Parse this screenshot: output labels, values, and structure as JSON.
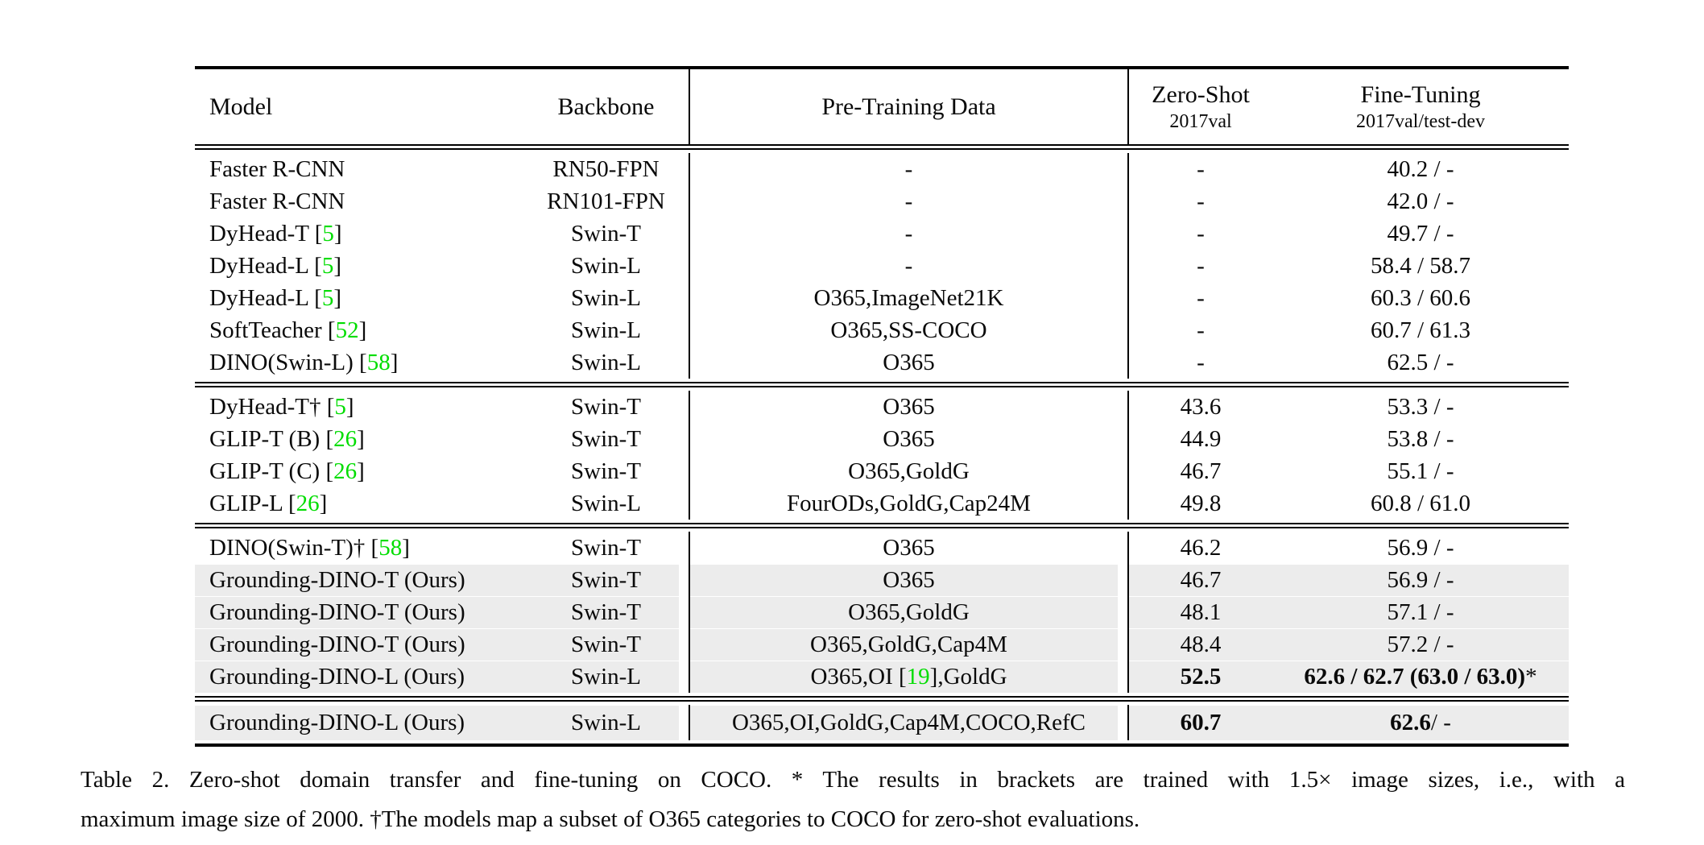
{
  "table": {
    "accent_green": "#00dd00",
    "highlight_color": "#ececec",
    "headers": {
      "model": "Model",
      "backbone": "Backbone",
      "pretrain": "Pre-Training Data",
      "zero_shot_title": "Zero-Shot",
      "zero_shot_sub": "2017val",
      "fine_tune_title": "Fine-Tuning",
      "fine_tune_sub": "2017val/test-dev"
    },
    "blocks": [
      {
        "rows": [
          {
            "model": [
              {
                "t": "Faster R-CNN"
              }
            ],
            "backbone": "RN50-FPN",
            "pretrain": "-",
            "zs": "-",
            "ft": "40.2 / -",
            "hl": false
          },
          {
            "model": [
              {
                "t": "Faster R-CNN"
              }
            ],
            "backbone": "RN101-FPN",
            "pretrain": "-",
            "zs": "-",
            "ft": "42.0 / -",
            "hl": false
          },
          {
            "model": [
              {
                "t": "DyHead-T ["
              },
              {
                "t": "5",
                "g": true
              },
              {
                "t": "]"
              }
            ],
            "backbone": "Swin-T",
            "pretrain": "-",
            "zs": "-",
            "ft": "49.7 / -",
            "hl": false
          },
          {
            "model": [
              {
                "t": "DyHead-L ["
              },
              {
                "t": "5",
                "g": true
              },
              {
                "t": "]"
              }
            ],
            "backbone": "Swin-L",
            "pretrain": "-",
            "zs": "-",
            "ft": "58.4 / 58.7",
            "hl": false
          },
          {
            "model": [
              {
                "t": "DyHead-L ["
              },
              {
                "t": "5",
                "g": true
              },
              {
                "t": "]"
              }
            ],
            "backbone": "Swin-L",
            "pretrain": "O365,ImageNet21K",
            "zs": "-",
            "ft": "60.3 / 60.6",
            "hl": false
          },
          {
            "model": [
              {
                "t": "SoftTeacher ["
              },
              {
                "t": "52",
                "g": true
              },
              {
                "t": "]"
              }
            ],
            "backbone": "Swin-L",
            "pretrain": "O365,SS-COCO",
            "zs": "-",
            "ft": "60.7 / 61.3",
            "hl": false
          },
          {
            "model": [
              {
                "t": "DINO(Swin-L) ["
              },
              {
                "t": "58",
                "g": true
              },
              {
                "t": "]"
              }
            ],
            "backbone": "Swin-L",
            "pretrain": "O365",
            "zs": "-",
            "ft": "62.5 / -",
            "hl": false
          }
        ]
      },
      {
        "rows": [
          {
            "model": [
              {
                "t": "DyHead-T† ["
              },
              {
                "t": "5",
                "g": true
              },
              {
                "t": "]"
              }
            ],
            "backbone": "Swin-T",
            "pretrain": "O365",
            "zs": "43.6",
            "ft": "53.3 / -",
            "hl": false
          },
          {
            "model": [
              {
                "t": "GLIP-T (B) ["
              },
              {
                "t": "26",
                "g": true
              },
              {
                "t": "]"
              }
            ],
            "backbone": "Swin-T",
            "pretrain": "O365",
            "zs": "44.9",
            "ft": "53.8 / -",
            "hl": false
          },
          {
            "model": [
              {
                "t": "GLIP-T (C) ["
              },
              {
                "t": "26",
                "g": true
              },
              {
                "t": "]"
              }
            ],
            "backbone": "Swin-T",
            "pretrain": "O365,GoldG",
            "zs": "46.7",
            "ft": "55.1 / -",
            "hl": false
          },
          {
            "model": [
              {
                "t": "GLIP-L ["
              },
              {
                "t": "26",
                "g": true
              },
              {
                "t": "]"
              }
            ],
            "backbone": "Swin-L",
            "pretrain": "FourODs,GoldG,Cap24M",
            "zs": "49.8",
            "ft": "60.8 / 61.0",
            "hl": false
          }
        ]
      },
      {
        "rows": [
          {
            "model": [
              {
                "t": "DINO(Swin-T)† ["
              },
              {
                "t": "58",
                "g": true
              },
              {
                "t": "]"
              }
            ],
            "backbone": "Swin-T",
            "pretrain": "O365",
            "zs": "46.2",
            "ft": "56.9 / -",
            "hl": false
          },
          {
            "model": [
              {
                "t": "Grounding-DINO-T (Ours)"
              }
            ],
            "backbone": "Swin-T",
            "pretrain": "O365",
            "zs": "46.7",
            "ft": "56.9 / -",
            "hl": true
          },
          {
            "model": [
              {
                "t": "Grounding-DINO-T (Ours)"
              }
            ],
            "backbone": "Swin-T",
            "pretrain": "O365,GoldG",
            "zs": "48.1",
            "ft": "57.1 / -",
            "hl": true
          },
          {
            "model": [
              {
                "t": "Grounding-DINO-T (Ours)"
              }
            ],
            "backbone": "Swin-T",
            "pretrain": "O365,GoldG,Cap4M",
            "zs": "48.4",
            "ft": "57.2 / -",
            "hl": true
          },
          {
            "model": [
              {
                "t": "Grounding-DINO-L (Ours)"
              }
            ],
            "backbone": "Swin-L",
            "pretrain": [
              {
                "t": "O365,OI ["
              },
              {
                "t": "19",
                "g": true
              },
              {
                "t": "],GoldG"
              }
            ],
            "zs": [
              {
                "t": "52.5",
                "b": true
              }
            ],
            "ft": [
              {
                "t": "62.6 / 62.7 (63.0 / 63.0)",
                "b": true
              },
              {
                "t": "*"
              }
            ],
            "hl": true
          }
        ]
      },
      {
        "rows": [
          {
            "model": [
              {
                "t": "Grounding-DINO-L (Ours)"
              }
            ],
            "backbone": "Swin-L",
            "pretrain": "O365,OI,GoldG,Cap4M,COCO,RefC",
            "zs": [
              {
                "t": "60.7",
                "b": true
              }
            ],
            "ft": [
              {
                "t": "62.6",
                "b": true
              },
              {
                "t": " / -"
              }
            ],
            "hl": true
          }
        ]
      }
    ]
  },
  "caption": {
    "line1": "Table 2.  Zero-shot domain transfer and fine-tuning on COCO. * The results in brackets are trained with 1.5× image sizes, i.e., with a",
    "line2": "maximum image size of 2000. †The models map a subset of O365 categories to COCO for zero-shot evaluations."
  }
}
